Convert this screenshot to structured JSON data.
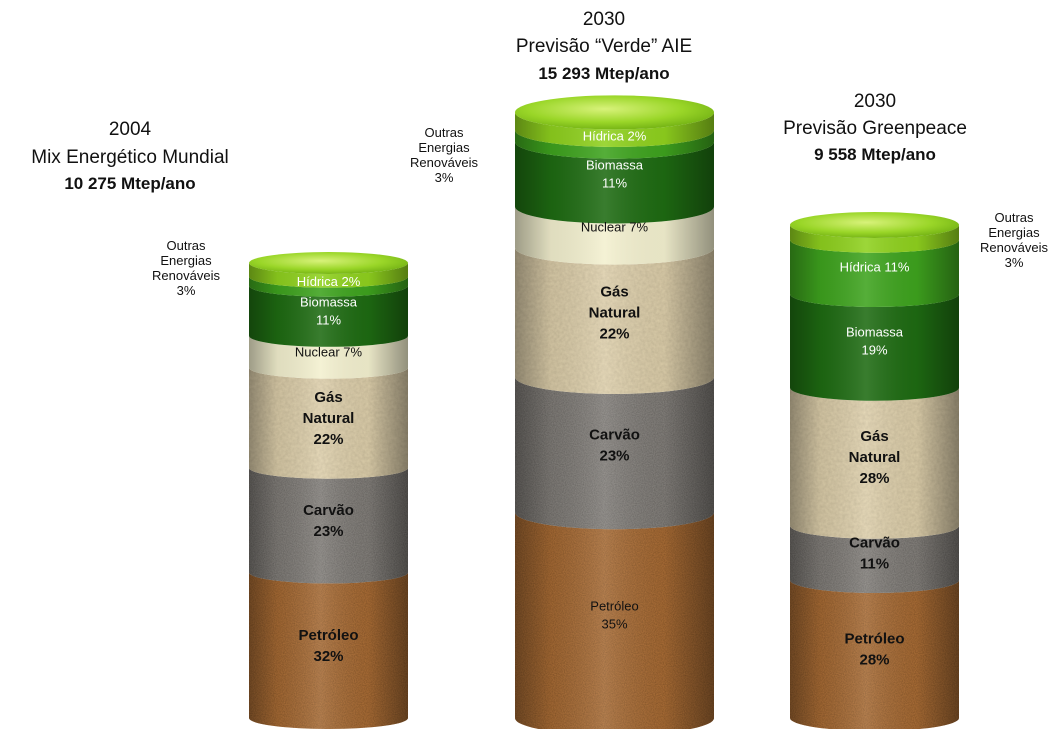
{
  "chart_data": [
    {
      "type": "stacked-cylinder",
      "title": "2004",
      "subtitle": "Mix Energético Mundial",
      "total": "10 275 Mtep/ano",
      "side_label": [
        "Outras",
        "Energias",
        "Renováveis",
        "3%"
      ],
      "segments": [
        {
          "name": "Petróleo",
          "label": [
            "Petróleo",
            "32%"
          ],
          "value": 32,
          "texture": "cork",
          "bold": true
        },
        {
          "name": "Carvão",
          "label": [
            "Carvão",
            "23%"
          ],
          "value": 23,
          "texture": "gravel",
          "bold": true
        },
        {
          "name": "Gás Natural",
          "label": [
            "Gás",
            "Natural",
            "22%"
          ],
          "value": 22,
          "texture": "sand",
          "bold": true
        },
        {
          "name": "Nuclear",
          "label": [
            "Nuclear 7%"
          ],
          "value": 7,
          "texture": "cream",
          "bold": false
        },
        {
          "name": "Biomassa",
          "label": [
            "Biomassa",
            "11%"
          ],
          "value": 11,
          "texture": "darkgreen",
          "bold": false
        },
        {
          "name": "Hídrica",
          "label": [
            "Hídrica 2%"
          ],
          "value": 2,
          "texture": "green",
          "bold": false
        },
        {
          "name": "Outras Energias Renováveis",
          "label": [],
          "value": 3,
          "texture": "lime",
          "bold": false
        }
      ]
    },
    {
      "type": "stacked-cylinder",
      "title": "2030",
      "subtitle": "Previsão “Verde” AIE",
      "total": "15 293 Mtep/ano",
      "side_label": [
        "Outras",
        "Energias",
        "Renováveis",
        "3%"
      ],
      "segments": [
        {
          "name": "Petróleo",
          "label": [
            "Petróleo",
            "35%"
          ],
          "value": 35,
          "texture": "cork",
          "bold": false
        },
        {
          "name": "Carvão",
          "label": [
            "Carvão",
            "23%"
          ],
          "value": 23,
          "texture": "gravel",
          "bold": true
        },
        {
          "name": "Gás Natural",
          "label": [
            "Gás",
            "Natural",
            "22%"
          ],
          "value": 22,
          "texture": "sand",
          "bold": true
        },
        {
          "name": "Nuclear",
          "label": [
            "Nuclear 7%"
          ],
          "value": 7,
          "texture": "cream",
          "bold": false
        },
        {
          "name": "Biomassa",
          "label": [
            "Biomassa",
            "11%"
          ],
          "value": 11,
          "texture": "darkgreen",
          "bold": false
        },
        {
          "name": "Hídrica",
          "label": [
            "Hídrica 2%"
          ],
          "value": 2,
          "texture": "green",
          "bold": false
        },
        {
          "name": "Outras Energias Renováveis",
          "label": [],
          "value": 3,
          "texture": "lime",
          "bold": false
        }
      ]
    },
    {
      "type": "stacked-cylinder",
      "title": "2030",
      "subtitle": "Previsão Greenpeace",
      "total": "9 558 Mtep/ano",
      "side_label": [
        "Outras",
        "Energias",
        "Renováveis",
        "3%"
      ],
      "segments": [
        {
          "name": "Petróleo",
          "label": [
            "Petróleo",
            "28%"
          ],
          "value": 28,
          "texture": "cork",
          "bold": true
        },
        {
          "name": "Carvão",
          "label": [
            "Carvão",
            "11%"
          ],
          "value": 11,
          "texture": "gravel",
          "bold": true
        },
        {
          "name": "Gás Natural",
          "label": [
            "Gás",
            "Natural",
            "28%"
          ],
          "value": 28,
          "texture": "sand",
          "bold": true
        },
        {
          "name": "Biomassa",
          "label": [
            "Biomassa",
            "19%"
          ],
          "value": 19,
          "texture": "darkgreen",
          "bold": false
        },
        {
          "name": "Hídrica",
          "label": [
            "Hídrica 11%"
          ],
          "value": 11,
          "texture": "green",
          "bold": false
        },
        {
          "name": "Outras Energias Renováveis",
          "label": [],
          "value": 3,
          "texture": "lime",
          "bold": false
        }
      ]
    }
  ],
  "colors": {
    "cork": "#b8763a",
    "gravel": "#8f8b86",
    "sand": "#e4d5b0",
    "cream": "#f3f0cf",
    "darkgreen": "#1e6b12",
    "green": "#3ea31e",
    "lime": "#8fd11e"
  }
}
